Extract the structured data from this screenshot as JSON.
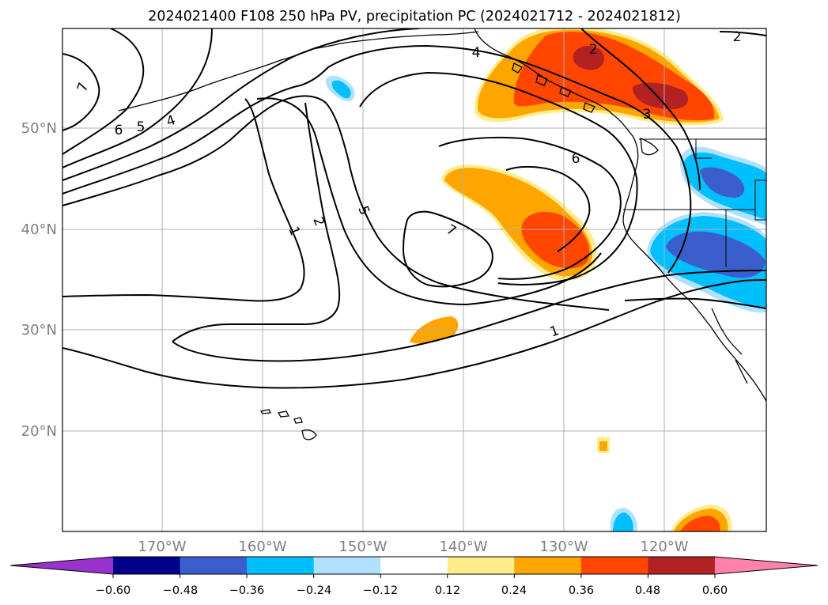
{
  "title": "2024021400 F108 250 hPa PV, precipitation PC (2024021712 - 2024021812)",
  "map": {
    "lat_labels": [
      "50°N",
      "40°N",
      "30°N",
      "20°N"
    ],
    "lon_labels": [
      "170°W",
      "160°W",
      "150°W",
      "140°W",
      "130°W",
      "120°W"
    ],
    "contour_labels": [
      "7",
      "6",
      "5",
      "4",
      "4",
      "2",
      "2",
      "3",
      "6",
      "5",
      "7",
      "2",
      "1",
      "1"
    ]
  },
  "colorbar": {
    "tick_labels": [
      "−0.60",
      "−0.48",
      "−0.36",
      "−0.24",
      "−0.12",
      "0.12",
      "0.24",
      "0.36",
      "0.48",
      "0.60"
    ],
    "colors": [
      "#9932cc",
      "#00008b",
      "#3a5fcd",
      "#00bfff",
      "#b0e2ff",
      "#ffffff",
      "#ffec8b",
      "#ffa500",
      "#ff4500",
      "#b22222",
      "#ff82ab"
    ]
  }
}
